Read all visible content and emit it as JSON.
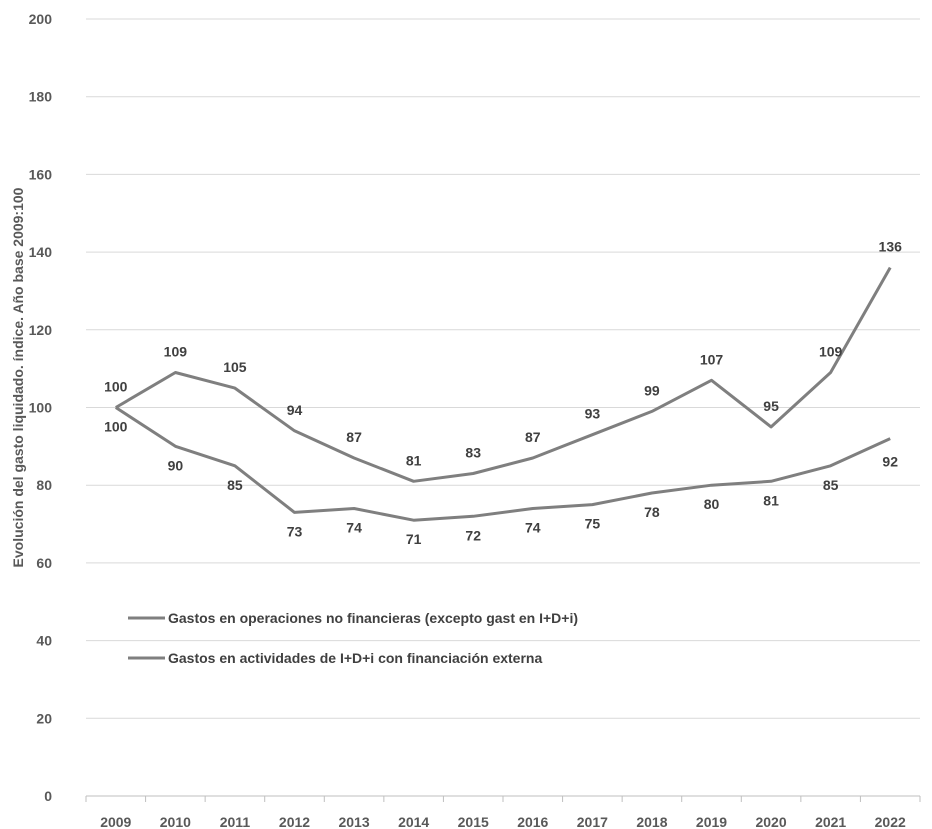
{
  "chart_data": {
    "type": "line",
    "ylabel": "Evolución del gasto liquidado. índice. Año base 2009:100",
    "xlabel": "",
    "ylim": [
      0,
      200
    ],
    "ytick_step": 20,
    "grid": "horizontal",
    "legend_position": "lower-left",
    "line_color": "#7f7f7f",
    "categories": [
      "2009",
      "2010",
      "2011",
      "2012",
      "2013",
      "2014",
      "2015",
      "2016",
      "2017",
      "2018",
      "2019",
      "2020",
      "2021",
      "2022"
    ],
    "series": [
      {
        "name": "Gastos en operaciones no financieras (excepto gast en I+D+i)",
        "values": [
          100,
          90,
          85,
          73,
          74,
          71,
          72,
          74,
          75,
          78,
          80,
          81,
          85,
          92
        ]
      },
      {
        "name": "Gastos en actividades de I+D+i con financiación externa",
        "values": [
          100,
          109,
          105,
          94,
          87,
          81,
          83,
          87,
          93,
          99,
          107,
          95,
          109,
          136
        ]
      }
    ]
  }
}
